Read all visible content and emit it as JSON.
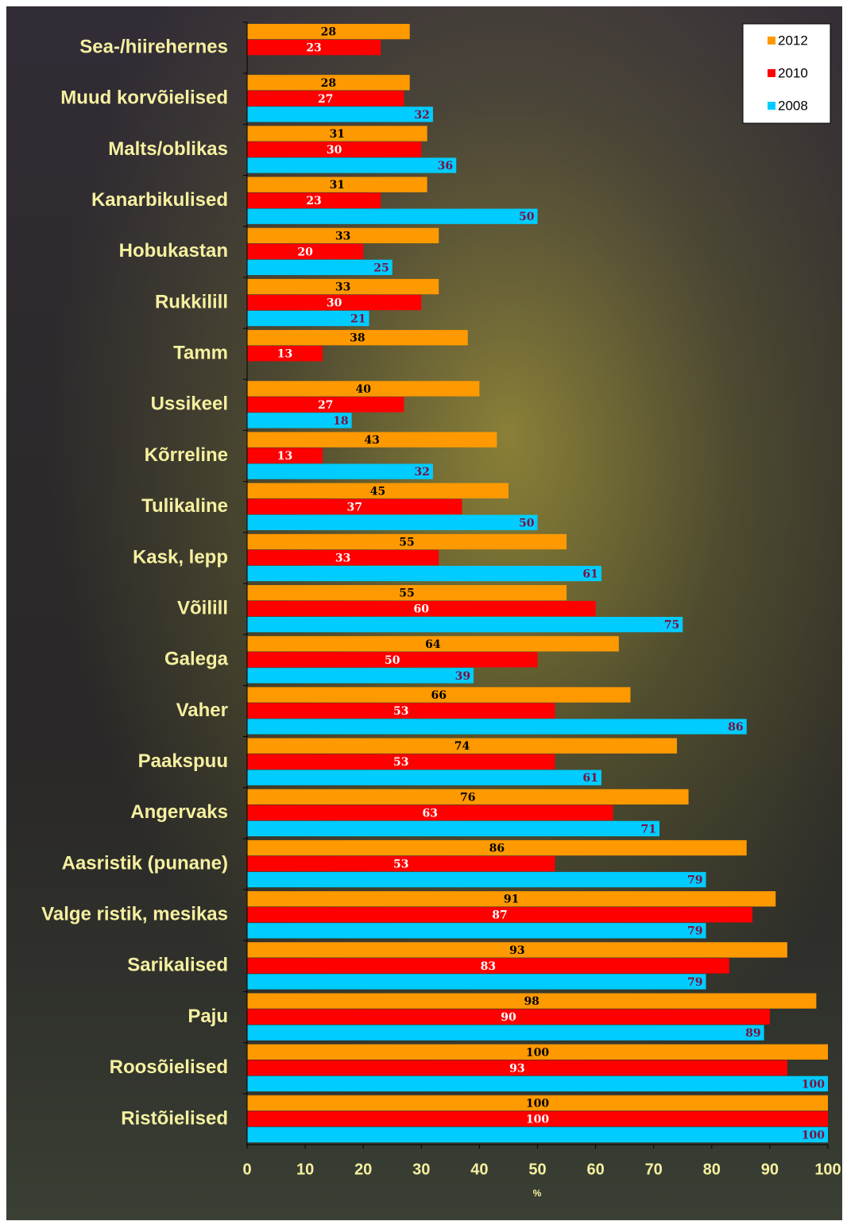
{
  "chart_data": {
    "type": "barh",
    "x_label": "%",
    "categories": [
      "Sea-/hiirehernes",
      "Muud korvõielised",
      "Malts/oblikas",
      "Kanarbikulised",
      "Hobukastan",
      "Rukkilill",
      "Tamm",
      "Ussikeel",
      "Kõrreline",
      "Tulikaline",
      "Kask, lepp",
      "Võilill",
      "Galega",
      "Vaher",
      "Paakspuu",
      "Angervaks",
      "Aasristik (punane)",
      "Valge ristik, mesikas",
      "Sarikalised",
      "Paju",
      "Roosõielised",
      "Ristõielised"
    ],
    "series": [
      {
        "name": "2012",
        "color": "#ff9900",
        "values": [
          28,
          28,
          31,
          31,
          33,
          33,
          38,
          40,
          43,
          45,
          55,
          55,
          64,
          66,
          74,
          76,
          86,
          91,
          93,
          98,
          100,
          100
        ]
      },
      {
        "name": "2010",
        "color": "#ff0000",
        "values": [
          23,
          27,
          30,
          23,
          20,
          30,
          13,
          27,
          13,
          37,
          33,
          60,
          50,
          53,
          53,
          63,
          53,
          87,
          83,
          90,
          93,
          100
        ]
      },
      {
        "name": "2008",
        "color": "#00ccff",
        "values": [
          null,
          32,
          36,
          50,
          25,
          21,
          null,
          18,
          32,
          50,
          61,
          75,
          39,
          86,
          61,
          71,
          79,
          79,
          79,
          89,
          100,
          100
        ]
      }
    ],
    "xlim": [
      0,
      100
    ],
    "xticks": [
      0,
      10,
      20,
      30,
      40,
      50,
      60,
      70,
      80,
      90,
      100
    ],
    "legend": "upper right"
  }
}
